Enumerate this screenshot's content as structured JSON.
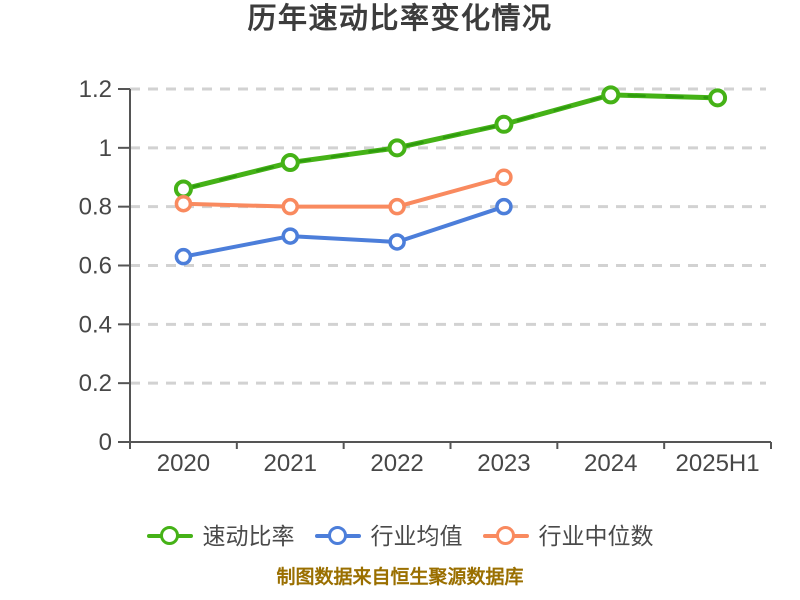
{
  "title": "历年速动比率变化情况",
  "footer": {
    "text": "制图数据来自恒生聚源数据库",
    "color": "#9A6F00"
  },
  "palette": {
    "quick_ratio_green": "#45B217",
    "quick_ratio_green_sketch": "#2D9A0D",
    "industry_avg_blue": "#4C7EDA",
    "industry_median_orange": "#F98A5F",
    "grid": "#D2D2D2",
    "axis": "#555555",
    "axis_text": "#474747",
    "title_text": "#3C3C3C",
    "legend_text": "#4A4A4A"
  },
  "chart_data": {
    "type": "line",
    "title": "历年速动比率变化情况",
    "categories": [
      "2020",
      "2021",
      "2022",
      "2023",
      "2024",
      "2025H1"
    ],
    "series": [
      {
        "name": "速动比率",
        "color": "#45B217",
        "marker": "circle-white-fill",
        "values": [
          0.86,
          0.95,
          1.0,
          1.08,
          1.18,
          1.17
        ]
      },
      {
        "name": "行业均值",
        "color": "#4C7EDA",
        "marker": "circle-white-fill",
        "values": [
          0.63,
          0.7,
          0.68,
          0.8,
          null,
          null
        ]
      },
      {
        "name": "行业中位数",
        "color": "#F98A5F",
        "marker": "circle-white-fill",
        "values": [
          0.81,
          0.8,
          0.8,
          0.9,
          null,
          null
        ]
      }
    ],
    "xlabel": "",
    "ylabel": "",
    "ylim": [
      0,
      1.2
    ],
    "yticks": [
      0,
      0.2,
      0.4,
      0.6,
      0.8,
      1,
      1.2
    ],
    "ytick_labels": [
      "0",
      "0.2",
      "0.4",
      "0.6",
      "0.8",
      "1",
      "1.2"
    ],
    "grid": "horizontal-dashed",
    "legend_position": "bottom",
    "source_note": "制图数据来自恒生聚源数据库"
  }
}
